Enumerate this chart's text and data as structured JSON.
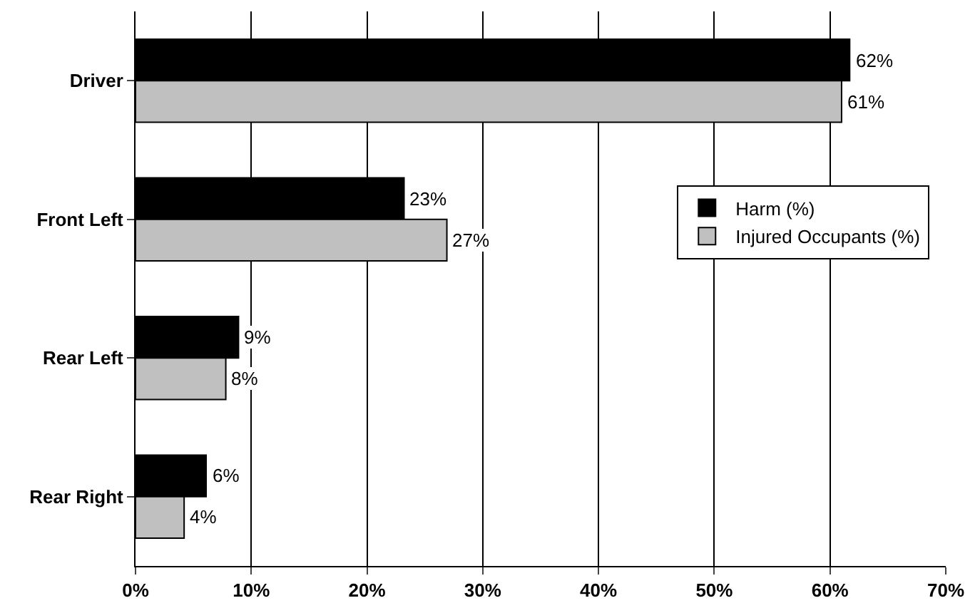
{
  "chart_data": {
    "type": "bar",
    "orientation": "horizontal",
    "categories": [
      "Driver",
      "Front Left",
      "Rear Left",
      "Rear Right"
    ],
    "series": [
      {
        "name": "Harm (%)",
        "color": "#000000",
        "values": [
          61.7,
          23.2,
          8.9,
          6.1
        ],
        "value_labels": [
          "62%",
          "23%",
          "9%",
          "6%"
        ]
      },
      {
        "name": "Injured Occupants (%)",
        "color": "#c0c0c0",
        "values": [
          61.0,
          26.9,
          7.8,
          4.2
        ],
        "value_labels": [
          "61%",
          "27%",
          "8%",
          "4%"
        ]
      }
    ],
    "xlim": [
      0,
      70
    ],
    "xticks": [
      {
        "value": 0,
        "label": "0%"
      },
      {
        "value": 10,
        "label": "10%"
      },
      {
        "value": 20,
        "label": "20%"
      },
      {
        "value": 30,
        "label": "30%"
      },
      {
        "value": 40,
        "label": "40%"
      },
      {
        "value": 50,
        "label": "50%"
      },
      {
        "value": 60,
        "label": "60%"
      },
      {
        "value": 70,
        "label": "70%"
      }
    ],
    "grid": "x",
    "legend": "right"
  }
}
